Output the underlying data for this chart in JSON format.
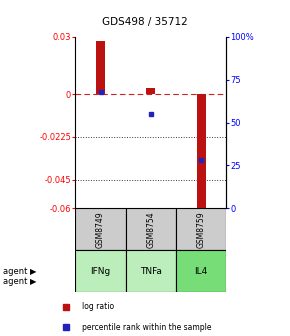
{
  "title": "GDS498 / 35712",
  "samples": [
    "GSM8749",
    "GSM8754",
    "GSM8759"
  ],
  "agents": [
    "IFNg",
    "TNFa",
    "IL4"
  ],
  "log_ratios": [
    0.028,
    0.003,
    -0.062
  ],
  "percentile_ranks": [
    68,
    55,
    28
  ],
  "ylim_left": [
    -0.06,
    0.03
  ],
  "ylim_right": [
    0,
    100
  ],
  "left_ticks": [
    0.03,
    0,
    -0.0225,
    -0.045,
    -0.06
  ],
  "right_ticks": [
    100,
    75,
    50,
    25,
    0
  ],
  "bar_color": "#bb1111",
  "dot_color": "#2222bb",
  "zero_line_color": "#cc2222",
  "grid_color": "#333333",
  "sample_bg_color": "#cccccc",
  "agent_colors": [
    "#bbeebb",
    "#bbeebb",
    "#77dd77"
  ],
  "legend_bar_label": "log ratio",
  "legend_dot_label": "percentile rank within the sample",
  "bar_width": 0.18
}
